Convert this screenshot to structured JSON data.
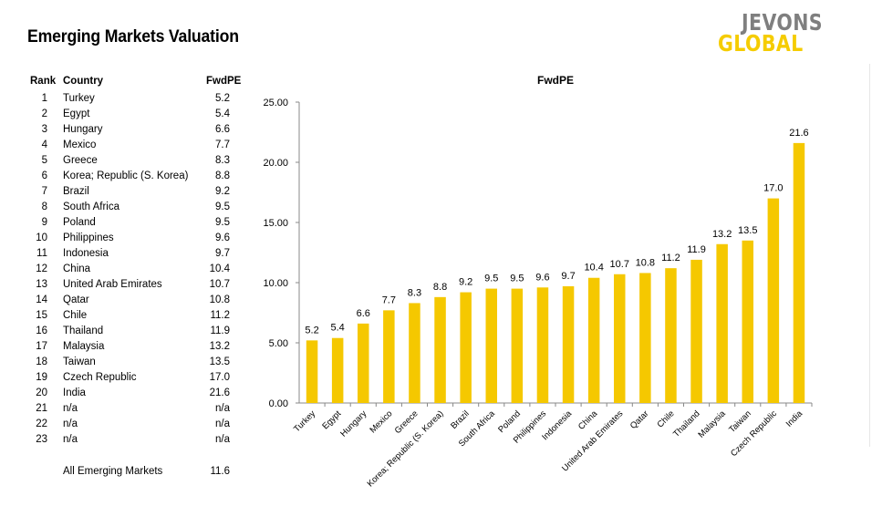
{
  "page": {
    "title": "Emerging Markets Valuation"
  },
  "logo": {
    "line1": "JEVONS",
    "line2": "GLOBAL",
    "color_primary": "#7f7f7f",
    "color_accent": "#f5cc00"
  },
  "table": {
    "headers": {
      "rank": "Rank",
      "country": "Country",
      "pe": "FwdPE"
    },
    "rows": [
      {
        "rank": "1",
        "country": "Turkey",
        "pe": "5.2"
      },
      {
        "rank": "2",
        "country": "Egypt",
        "pe": "5.4"
      },
      {
        "rank": "3",
        "country": "Hungary",
        "pe": "6.6"
      },
      {
        "rank": "4",
        "country": "Mexico",
        "pe": "7.7"
      },
      {
        "rank": "5",
        "country": "Greece",
        "pe": "8.3"
      },
      {
        "rank": "6",
        "country": "Korea; Republic (S. Korea)",
        "pe": "8.8"
      },
      {
        "rank": "7",
        "country": "Brazil",
        "pe": "9.2"
      },
      {
        "rank": "8",
        "country": "South Africa",
        "pe": "9.5"
      },
      {
        "rank": "9",
        "country": "Poland",
        "pe": "9.5"
      },
      {
        "rank": "10",
        "country": "Philippines",
        "pe": "9.6"
      },
      {
        "rank": "11",
        "country": "Indonesia",
        "pe": "9.7"
      },
      {
        "rank": "12",
        "country": "China",
        "pe": "10.4"
      },
      {
        "rank": "13",
        "country": "United Arab Emirates",
        "pe": "10.7"
      },
      {
        "rank": "14",
        "country": "Qatar",
        "pe": "10.8"
      },
      {
        "rank": "15",
        "country": "Chile",
        "pe": "11.2"
      },
      {
        "rank": "16",
        "country": "Thailand",
        "pe": "11.9"
      },
      {
        "rank": "17",
        "country": "Malaysia",
        "pe": "13.2"
      },
      {
        "rank": "18",
        "country": "Taiwan",
        "pe": "13.5"
      },
      {
        "rank": "19",
        "country": "Czech Republic",
        "pe": "17.0"
      },
      {
        "rank": "20",
        "country": "India",
        "pe": "21.6"
      },
      {
        "rank": "21",
        "country": "n/a",
        "pe": "n/a"
      },
      {
        "rank": "22",
        "country": "n/a",
        "pe": "n/a"
      },
      {
        "rank": "23",
        "country": "n/a",
        "pe": "n/a"
      }
    ],
    "summary": {
      "label": "All Emerging Markets",
      "pe": "11.6"
    }
  },
  "chart_data": {
    "type": "bar",
    "title": "FwdPE",
    "xlabel": "",
    "ylabel": "",
    "ylim": [
      0,
      25
    ],
    "yticks": [
      "0.00",
      "5.00",
      "10.00",
      "15.00",
      "20.00",
      "25.00"
    ],
    "bar_color": "#f5c800",
    "categories": [
      "Turkey",
      "Egypt",
      "Hungary",
      "Mexico",
      "Greece",
      "Korea; Republic (S. Korea)",
      "Brazil",
      "South Africa",
      "Poland",
      "Philippines",
      "Indonesia",
      "China",
      "United Arab Emirates",
      "Qatar",
      "Chile",
      "Thailand",
      "Malaysia",
      "Taiwan",
      "Czech Republic",
      "India"
    ],
    "values": [
      5.2,
      5.4,
      6.6,
      7.7,
      8.3,
      8.8,
      9.2,
      9.5,
      9.5,
      9.6,
      9.7,
      10.4,
      10.7,
      10.8,
      11.2,
      11.9,
      13.2,
      13.5,
      17.0,
      21.6
    ],
    "value_labels": [
      "5.2",
      "5.4",
      "6.6",
      "7.7",
      "8.3",
      "8.8",
      "9.2",
      "9.5",
      "9.5",
      "9.6",
      "9.7",
      "10.4",
      "10.7",
      "10.8",
      "11.2",
      "11.9",
      "13.2",
      "13.5",
      "17.0",
      "21.6"
    ]
  }
}
